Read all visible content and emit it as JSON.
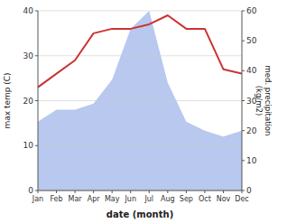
{
  "chart_data": {
    "type": "line",
    "categories": [
      "Jan",
      "Feb",
      "Mar",
      "Apr",
      "May",
      "Jun",
      "Jul",
      "Aug",
      "Sep",
      "Oct",
      "Nov",
      "Dec"
    ],
    "series": [
      {
        "type": "area",
        "axis": "y2",
        "color": "#b8c8ee",
        "values": [
          23,
          27,
          27,
          29,
          37,
          54,
          60,
          36,
          23,
          20,
          18,
          20
        ]
      },
      {
        "type": "line",
        "color": "#cc3333",
        "values": [
          23,
          26,
          29,
          35,
          36,
          36,
          37,
          39,
          36,
          36,
          27,
          26
        ]
      }
    ],
    "xlabel": "date (month)",
    "ylabel": "max temp (C)",
    "y2label": "med. precipitation\n(kg/m2)",
    "ylim": [
      0,
      40
    ],
    "yticks": [
      0,
      10,
      20,
      30,
      40
    ],
    "y2lim": [
      0,
      60
    ],
    "y2ticks": [
      0,
      10,
      20,
      30,
      40,
      50,
      60
    ],
    "grid": true
  }
}
